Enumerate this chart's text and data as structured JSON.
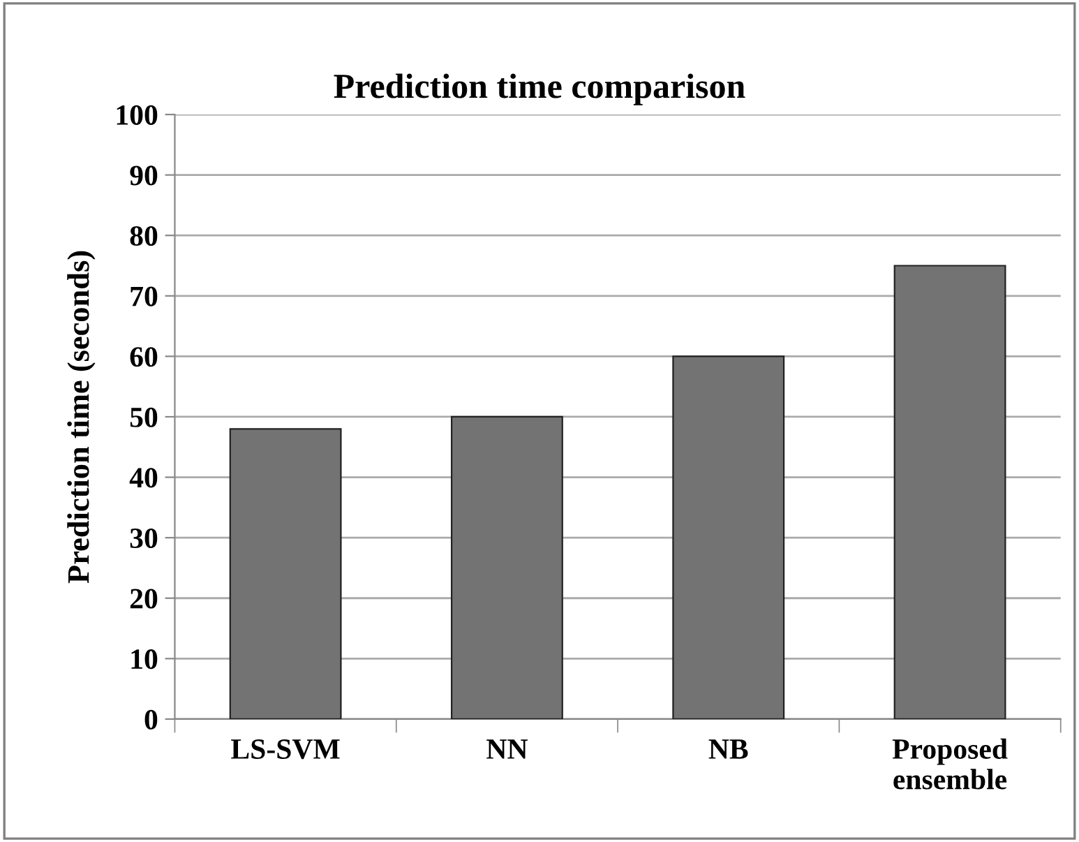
{
  "chart_data": {
    "type": "bar",
    "title": "Prediction time comparison",
    "ylabel": "Prediction time (seconds)",
    "categories": [
      "LS-SVM",
      "NN",
      "NB",
      "Proposed ensemble"
    ],
    "values": [
      48,
      50,
      60,
      75
    ],
    "color": "#737373",
    "ylim": [
      0,
      100
    ],
    "yticks": [
      0,
      10,
      20,
      30,
      40,
      50,
      60,
      70,
      80,
      90,
      100
    ],
    "grid": "y",
    "legend": false
  }
}
